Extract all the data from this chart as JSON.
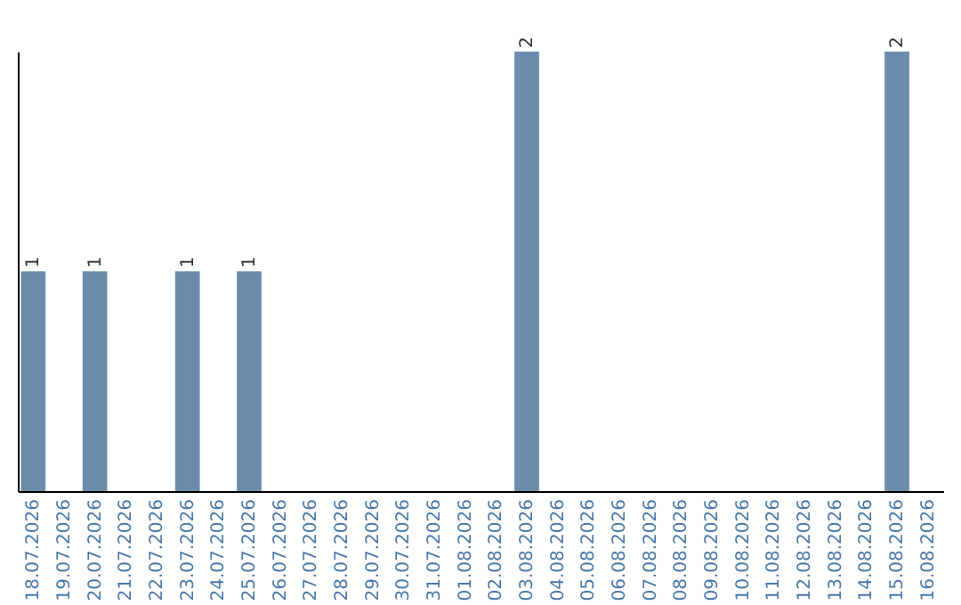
{
  "chart_data": {
    "type": "bar",
    "categories": [
      "18.07.2026",
      "19.07.2026",
      "20.07.2026",
      "21.07.2026",
      "22.07.2026",
      "23.07.2026",
      "24.07.2026",
      "25.07.2026",
      "26.07.2026",
      "27.07.2026",
      "28.07.2026",
      "29.07.2026",
      "30.07.2026",
      "31.07.2026",
      "01.08.2026",
      "02.08.2026",
      "03.08.2026",
      "04.08.2026",
      "05.08.2026",
      "06.08.2026",
      "07.08.2026",
      "08.08.2026",
      "09.08.2026",
      "10.08.2026",
      "11.08.2026",
      "12.08.2026",
      "13.08.2026",
      "14.08.2026",
      "15.08.2026",
      "16.08.2026"
    ],
    "values": [
      1,
      null,
      1,
      null,
      null,
      1,
      null,
      1,
      null,
      null,
      null,
      null,
      null,
      null,
      null,
      null,
      2,
      null,
      null,
      null,
      null,
      null,
      null,
      null,
      null,
      null,
      null,
      null,
      2,
      null
    ],
    "color": "#6b8cac",
    "data_labels": true,
    "tick_labels": "x"
  }
}
